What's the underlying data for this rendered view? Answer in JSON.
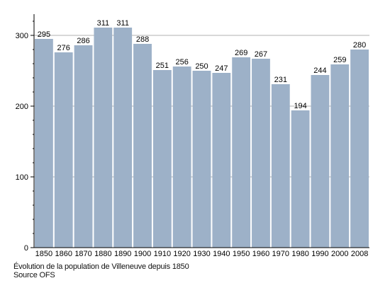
{
  "chart_data": {
    "type": "bar",
    "categories": [
      "1850",
      "1860",
      "1870",
      "1880",
      "1890",
      "1900",
      "1910",
      "1920",
      "1930",
      "1940",
      "1950",
      "1960",
      "1970",
      "1980",
      "1990",
      "2000",
      "2008"
    ],
    "values": [
      295,
      276,
      286,
      311,
      311,
      288,
      251,
      256,
      250,
      247,
      269,
      267,
      231,
      194,
      244,
      259,
      280
    ],
    "ylim": [
      0,
      320
    ],
    "yticks": [
      0,
      100,
      200,
      300
    ],
    "grid": true,
    "bar_color": "#9db1c8",
    "grid_color": "#999999",
    "caption": "Évolution de la population de Villeneuve depuis 1850",
    "source": "Source OFS"
  }
}
